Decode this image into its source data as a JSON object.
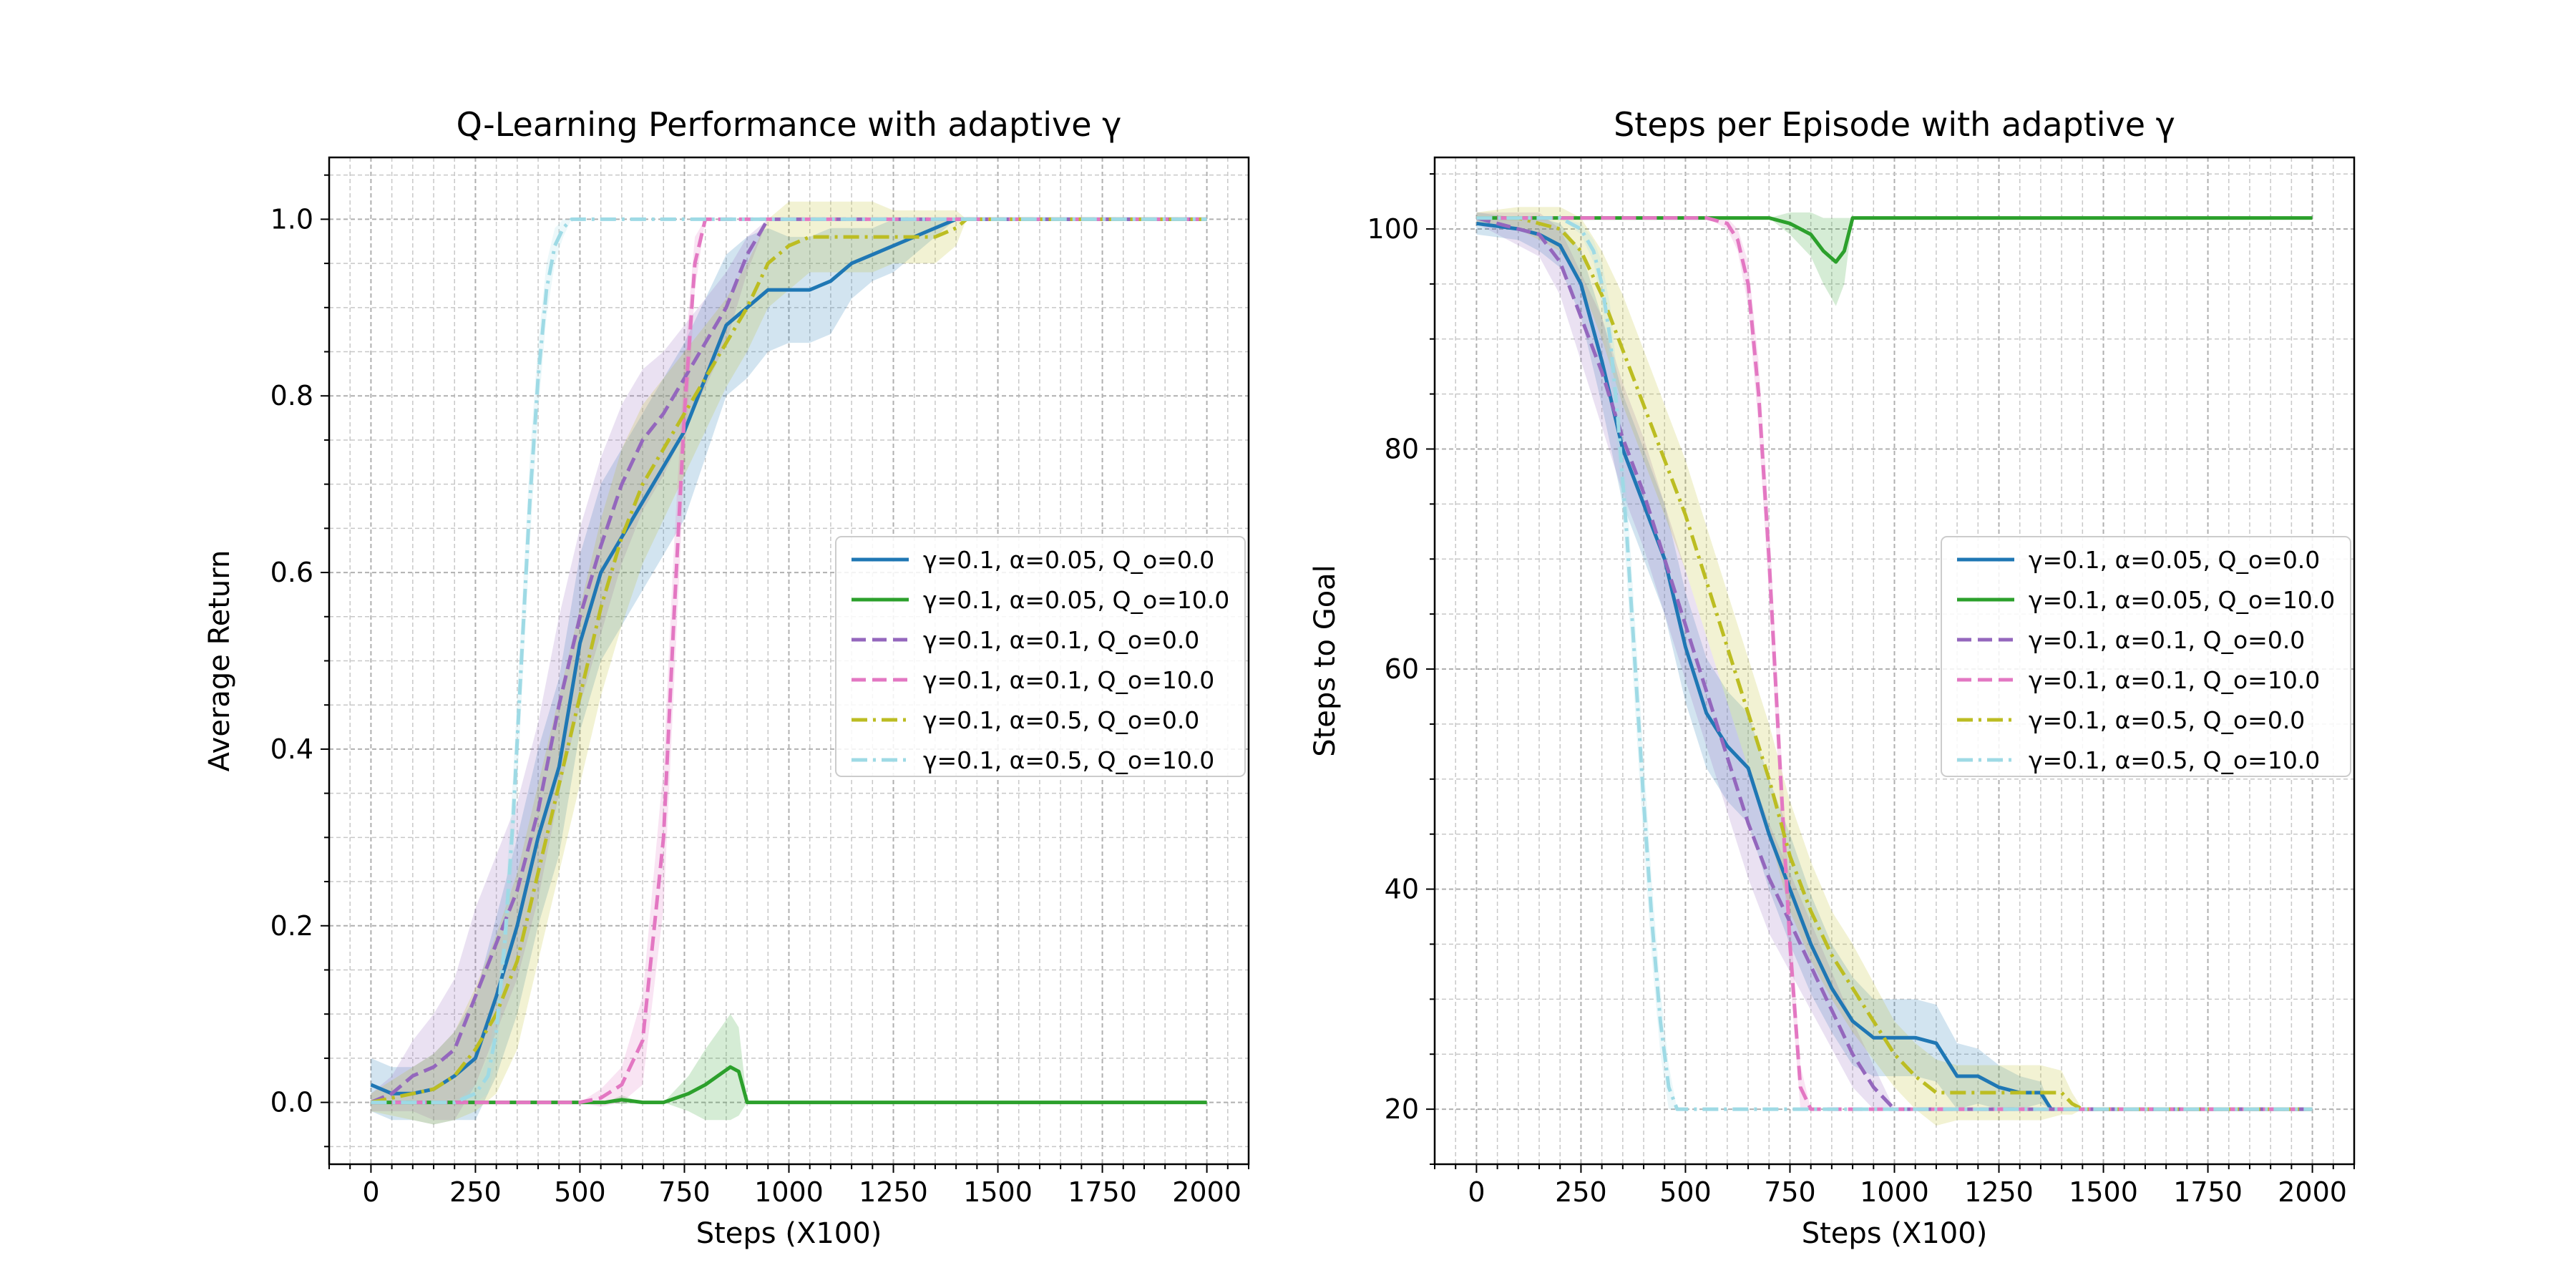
{
  "chart_data": [
    {
      "type": "line",
      "title": "Q-Learning Performance with adaptive γ",
      "xlabel": "Steps (X100)",
      "ylabel": "Average Return",
      "xlim": [
        -100,
        2100
      ],
      "ylim": [
        -0.07,
        1.07
      ],
      "xticks": [
        0,
        250,
        500,
        750,
        1000,
        1250,
        1500,
        1750,
        2000
      ],
      "yticks": [
        0.0,
        0.2,
        0.4,
        0.6,
        0.8,
        1.0
      ],
      "xtick_labels": [
        "0",
        "250",
        "500",
        "750",
        "1000",
        "1250",
        "1500",
        "1750",
        "2000"
      ],
      "ytick_labels": [
        "0.0",
        "0.2",
        "0.4",
        "0.6",
        "0.8",
        "1.0"
      ],
      "grid": true,
      "legend_position": "center-right",
      "series": [
        {
          "name": "γ=0.1, α=0.05, Q_o=0.0",
          "color": "#1f77b4",
          "dash": "solid",
          "x": [
            0,
            50,
            100,
            150,
            200,
            250,
            300,
            350,
            400,
            450,
            500,
            550,
            600,
            650,
            700,
            750,
            800,
            850,
            900,
            950,
            1000,
            1050,
            1100,
            1150,
            1200,
            1250,
            1300,
            1350,
            1400,
            1450,
            1500,
            1750,
            2000
          ],
          "y": [
            0.02,
            0.01,
            0.01,
            0.015,
            0.03,
            0.05,
            0.12,
            0.2,
            0.3,
            0.38,
            0.52,
            0.6,
            0.64,
            0.68,
            0.72,
            0.76,
            0.82,
            0.88,
            0.9,
            0.92,
            0.92,
            0.92,
            0.93,
            0.95,
            0.96,
            0.97,
            0.98,
            0.99,
            1.0,
            1.0,
            1.0,
            1.0,
            1.0
          ],
          "band": [
            0.03,
            0.03,
            0.03,
            0.04,
            0.05,
            0.07,
            0.09,
            0.1,
            0.1,
            0.1,
            0.1,
            0.1,
            0.1,
            0.1,
            0.1,
            0.1,
            0.09,
            0.08,
            0.08,
            0.07,
            0.06,
            0.06,
            0.06,
            0.04,
            0.03,
            0.03,
            0.02,
            0.01,
            0.0,
            0.0,
            0.0,
            0.0,
            0.0
          ]
        },
        {
          "name": "γ=0.1, α=0.05, Q_o=10.0",
          "color": "#2ca02c",
          "dash": "solid",
          "x": [
            0,
            500,
            560,
            600,
            650,
            700,
            760,
            800,
            830,
            860,
            880,
            900,
            950,
            1000,
            1500,
            2000
          ],
          "y": [
            0.0,
            0.0,
            0.0,
            0.003,
            0.0,
            0.0,
            0.01,
            0.02,
            0.03,
            0.04,
            0.035,
            0.0,
            0.0,
            0.0,
            0.0,
            0.0
          ],
          "band": [
            0,
            0,
            0,
            0.005,
            0,
            0,
            0.02,
            0.04,
            0.05,
            0.06,
            0.05,
            0,
            0,
            0,
            0,
            0
          ]
        },
        {
          "name": "γ=0.1, α=0.1, Q_o=0.0",
          "color": "#9467bd",
          "dash": "dashed",
          "x": [
            0,
            50,
            100,
            150,
            200,
            250,
            300,
            350,
            400,
            450,
            500,
            550,
            600,
            650,
            700,
            750,
            800,
            850,
            900,
            950,
            1000,
            1050,
            1100,
            1500,
            2000
          ],
          "y": [
            0.0,
            0.01,
            0.03,
            0.04,
            0.06,
            0.12,
            0.18,
            0.24,
            0.33,
            0.45,
            0.55,
            0.63,
            0.7,
            0.75,
            0.78,
            0.82,
            0.86,
            0.9,
            0.96,
            1.0,
            1.0,
            1.0,
            1.0,
            1.0,
            1.0
          ],
          "band": [
            0.01,
            0.02,
            0.04,
            0.06,
            0.08,
            0.1,
            0.1,
            0.1,
            0.1,
            0.1,
            0.1,
            0.1,
            0.09,
            0.08,
            0.07,
            0.06,
            0.05,
            0.04,
            0.02,
            0.0,
            0.0,
            0.0,
            0.0,
            0.0,
            0.0
          ]
        },
        {
          "name": "γ=0.1, α=0.1, Q_o=10.0",
          "color": "#e377c2",
          "dash": "dashed",
          "x": [
            0,
            500,
            550,
            600,
            650,
            700,
            725,
            750,
            775,
            800,
            850,
            900,
            1000,
            1500,
            2000
          ],
          "y": [
            0.0,
            0.0,
            0.005,
            0.02,
            0.07,
            0.3,
            0.55,
            0.78,
            0.95,
            1.0,
            1.0,
            1.0,
            1.0,
            1.0,
            1.0
          ],
          "band": [
            0,
            0,
            0.01,
            0.02,
            0.05,
            0.08,
            0.08,
            0.06,
            0.03,
            0.0,
            0,
            0,
            0,
            0,
            0
          ]
        },
        {
          "name": "γ=0.1, α=0.5, Q_o=0.0",
          "color": "#bcbd22",
          "dash": "dashdot",
          "x": [
            0,
            50,
            100,
            150,
            200,
            250,
            300,
            350,
            400,
            450,
            500,
            550,
            600,
            650,
            700,
            750,
            800,
            850,
            900,
            950,
            1000,
            1050,
            1100,
            1150,
            1200,
            1250,
            1300,
            1350,
            1400,
            1425,
            1450,
            1500,
            1750,
            2000
          ],
          "y": [
            0.0,
            0.005,
            0.01,
            0.015,
            0.03,
            0.06,
            0.1,
            0.16,
            0.26,
            0.36,
            0.46,
            0.56,
            0.64,
            0.7,
            0.74,
            0.78,
            0.82,
            0.86,
            0.9,
            0.95,
            0.97,
            0.98,
            0.98,
            0.98,
            0.98,
            0.98,
            0.98,
            0.98,
            0.99,
            1.0,
            1.0,
            1.0,
            1.0,
            1.0
          ],
          "band": [
            0.01,
            0.02,
            0.03,
            0.04,
            0.05,
            0.07,
            0.09,
            0.1,
            0.1,
            0.1,
            0.1,
            0.1,
            0.1,
            0.09,
            0.08,
            0.07,
            0.06,
            0.05,
            0.05,
            0.05,
            0.05,
            0.04,
            0.04,
            0.04,
            0.04,
            0.03,
            0.03,
            0.03,
            0.02,
            0.0,
            0.0,
            0.0,
            0.0,
            0.0
          ]
        },
        {
          "name": "γ=0.1, α=0.5, Q_o=10.0",
          "color": "#9edae5",
          "dash": "dashdot",
          "x": [
            0,
            200,
            250,
            280,
            300,
            320,
            340,
            360,
            380,
            400,
            420,
            440,
            460,
            480,
            500,
            750,
            1000,
            1500,
            2000
          ],
          "y": [
            0.0,
            0.0,
            0.01,
            0.03,
            0.08,
            0.18,
            0.32,
            0.5,
            0.68,
            0.82,
            0.92,
            0.97,
            0.99,
            1.0,
            1.0,
            1.0,
            1.0,
            1.0,
            1.0
          ],
          "band": [
            0,
            0,
            0.01,
            0.02,
            0.03,
            0.04,
            0.05,
            0.05,
            0.05,
            0.04,
            0.03,
            0.02,
            0.01,
            0,
            0,
            0,
            0,
            0,
            0
          ]
        }
      ]
    },
    {
      "type": "line",
      "title": "Steps per Episode with adaptive γ",
      "xlabel": "Steps (X100)",
      "ylabel": "Steps to Goal",
      "xlim": [
        -100,
        2100
      ],
      "ylim": [
        15,
        106.5
      ],
      "xticks": [
        0,
        250,
        500,
        750,
        1000,
        1250,
        1500,
        1750,
        2000
      ],
      "yticks": [
        20,
        40,
        60,
        80,
        100
      ],
      "xtick_labels": [
        "0",
        "250",
        "500",
        "750",
        "1000",
        "1250",
        "1500",
        "1750",
        "2000"
      ],
      "ytick_labels": [
        "20",
        "40",
        "60",
        "80",
        "100"
      ],
      "grid": true,
      "legend_position": "center-right",
      "series": [
        {
          "name": "γ=0.1, α=0.05, Q_o=0.0",
          "color": "#1f77b4",
          "dash": "solid",
          "x": [
            0,
            100,
            150,
            200,
            250,
            300,
            350,
            400,
            450,
            500,
            550,
            600,
            650,
            700,
            750,
            800,
            850,
            900,
            950,
            1000,
            1050,
            1100,
            1150,
            1200,
            1250,
            1300,
            1350,
            1375,
            1400,
            1500,
            1750,
            2000
          ],
          "y": [
            100.5,
            100.0,
            99.5,
            98.5,
            95.0,
            88.0,
            80.0,
            75.0,
            70.0,
            62.0,
            56.0,
            53.0,
            51.0,
            45.0,
            40.0,
            35.0,
            31.0,
            28.0,
            26.5,
            26.5,
            26.5,
            26.0,
            23.0,
            23.0,
            22.0,
            21.5,
            21.5,
            20.0,
            20.0,
            20.0,
            20.0,
            20.0
          ],
          "band": [
            1,
            1,
            1.5,
            2,
            3,
            4,
            5,
            5,
            5,
            5,
            5,
            5,
            5,
            5,
            5,
            4.5,
            4,
            4,
            3.5,
            3.5,
            3.5,
            3.5,
            3,
            2.5,
            2,
            1.5,
            1,
            0,
            0,
            0,
            0,
            0
          ]
        },
        {
          "name": "γ=0.1, α=0.05, Q_o=10.0",
          "color": "#2ca02c",
          "dash": "solid",
          "x": [
            0,
            500,
            600,
            700,
            750,
            800,
            830,
            860,
            880,
            900,
            950,
            1000,
            1500,
            2000
          ],
          "y": [
            101.0,
            101.0,
            101.0,
            101.0,
            100.5,
            99.5,
            98.0,
            97.0,
            98.0,
            101.0,
            101.0,
            101.0,
            101.0,
            101.0
          ],
          "band": [
            0,
            0,
            0,
            0,
            1,
            2,
            3,
            4,
            3,
            0,
            0,
            0,
            0,
            0
          ]
        },
        {
          "name": "γ=0.1, α=0.1, Q_o=0.0",
          "color": "#9467bd",
          "dash": "dashed",
          "x": [
            0,
            50,
            100,
            150,
            200,
            250,
            300,
            350,
            400,
            450,
            500,
            550,
            600,
            650,
            700,
            750,
            800,
            850,
            900,
            950,
            1000,
            1050,
            1100,
            1500,
            2000
          ],
          "y": [
            101.0,
            100.5,
            100.0,
            99.5,
            97.0,
            92.0,
            87.0,
            81.0,
            76.0,
            70.0,
            64.0,
            58.0,
            52.0,
            46.0,
            41.0,
            37.0,
            33.0,
            29.0,
            25.0,
            22.0,
            20.0,
            20.0,
            20.0,
            20.0,
            20.0
          ],
          "band": [
            0.5,
            1,
            1.5,
            2,
            3,
            4,
            5,
            5,
            5,
            5,
            5,
            5,
            5,
            5,
            5,
            4.5,
            4,
            3.5,
            3,
            2,
            0,
            0,
            0,
            0,
            0
          ]
        },
        {
          "name": "γ=0.1, α=0.1, Q_o=10.0",
          "color": "#e377c2",
          "dash": "dashed",
          "x": [
            0,
            500,
            550,
            600,
            625,
            650,
            675,
            700,
            725,
            750,
            775,
            800,
            1000,
            1500,
            2000
          ],
          "y": [
            101.0,
            101.0,
            101.0,
            100.5,
            99.0,
            95.0,
            85.0,
            70.0,
            52.0,
            35.0,
            22.0,
            20.0,
            20.0,
            20.0,
            20.0
          ],
          "band": [
            0,
            0,
            0,
            0.5,
            1,
            2,
            3,
            3.5,
            3.5,
            3,
            2,
            0,
            0,
            0,
            0
          ]
        },
        {
          "name": "γ=0.1, α=0.5, Q_o=0.0",
          "color": "#bcbd22",
          "dash": "dashdot",
          "x": [
            0,
            100,
            200,
            250,
            300,
            350,
            400,
            450,
            500,
            550,
            600,
            650,
            700,
            750,
            800,
            850,
            900,
            950,
            1000,
            1050,
            1100,
            1150,
            1200,
            1250,
            1300,
            1350,
            1400,
            1425,
            1450,
            1500,
            1750,
            2000
          ],
          "y": [
            101.0,
            101.0,
            100.0,
            98.0,
            94.0,
            89.0,
            84.0,
            79.0,
            74.0,
            68.0,
            62.0,
            56.0,
            50.0,
            43.0,
            38.0,
            34.0,
            31.0,
            28.0,
            25.0,
            23.0,
            21.5,
            21.5,
            21.5,
            21.5,
            21.5,
            21.5,
            21.5,
            20.5,
            20.0,
            20.0,
            20.0,
            20.0
          ],
          "band": [
            0.5,
            1,
            2,
            3,
            4,
            5,
            5,
            5,
            5,
            5,
            5,
            5,
            5,
            5,
            4.5,
            4,
            4,
            3.5,
            3,
            3,
            3,
            2.5,
            2.5,
            2.5,
            2.5,
            2.5,
            2,
            1,
            0,
            0,
            0,
            0
          ]
        },
        {
          "name": "γ=0.1, α=0.5, Q_o=10.0",
          "color": "#9edae5",
          "dash": "dashdot",
          "x": [
            0,
            200,
            250,
            280,
            300,
            320,
            340,
            360,
            380,
            400,
            420,
            440,
            460,
            480,
            500,
            1000,
            1500,
            2000
          ],
          "y": [
            101.0,
            101.0,
            100.0,
            98.0,
            95.0,
            90.0,
            82.0,
            72.0,
            60.0,
            48.0,
            37.0,
            28.0,
            22.0,
            20.0,
            20.0,
            20.0,
            20.0,
            20.0
          ],
          "band": [
            0,
            0,
            0.5,
            1,
            2,
            3,
            3.5,
            4,
            4,
            4,
            3.5,
            3,
            2,
            0,
            0,
            0,
            0,
            0
          ]
        }
      ]
    }
  ]
}
